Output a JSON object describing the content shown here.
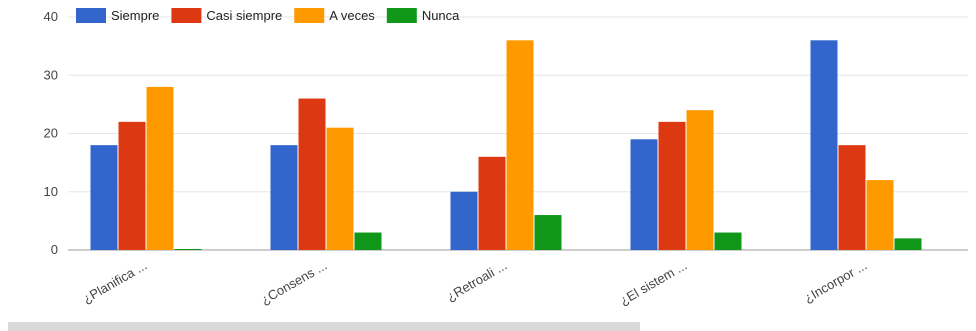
{
  "chart_data": {
    "type": "bar",
    "categories": [
      "¿Planifica ...",
      "¿Consens ...",
      "¿Retroali ...",
      "¿El sistem ...",
      "¿Incorpor ..."
    ],
    "series": [
      {
        "name": "Siempre",
        "color": "#3366cc",
        "values": [
          18,
          18,
          10,
          19,
          36
        ]
      },
      {
        "name": "Casi siempre",
        "color": "#dc3912",
        "values": [
          22,
          26,
          16,
          22,
          18
        ]
      },
      {
        "name": "A veces",
        "color": "#ff9900",
        "values": [
          28,
          21,
          36,
          24,
          12
        ]
      },
      {
        "name": "Nunca",
        "color": "#109618",
        "values": [
          0,
          3,
          6,
          3,
          2
        ]
      }
    ],
    "ylim": [
      0,
      40
    ],
    "yticks": [
      0,
      10,
      20,
      30,
      40
    ],
    "grid": true,
    "legend_position": "top-left"
  }
}
